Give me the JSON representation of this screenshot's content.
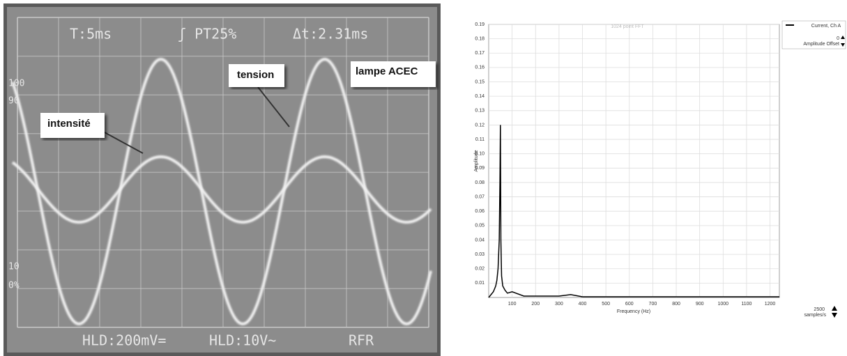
{
  "oscilloscope": {
    "readouts": [
      "T:5ms",
      "ʃ PT25%",
      "Δt:2.31ms",
      "HLD:200mV=",
      "HLD:10V~",
      "RFR"
    ],
    "graticule_labels": [
      "100",
      "90",
      "10",
      "0%"
    ],
    "annotations": [
      "tension",
      "lampe ACEC",
      "intensité"
    ]
  },
  "chart_data": {
    "type": "line",
    "title": "1024 point FFT",
    "x_label": "Frequency (Hz)",
    "y_label": "Amplitude",
    "x": [
      0,
      10,
      20,
      30,
      35,
      40,
      45,
      48,
      50,
      52,
      55,
      60,
      70,
      80,
      100,
      150,
      200,
      300,
      350,
      400,
      600,
      800,
      1000,
      1240
    ],
    "series": [
      {
        "name": "Current, Ch A",
        "color": "#000000",
        "values": [
          0,
          0.002,
          0.004,
          0.008,
          0.012,
          0.02,
          0.04,
          0.08,
          0.12,
          0.04,
          0.015,
          0.008,
          0.005,
          0.003,
          0.004,
          0.001,
          0.001,
          0.001,
          0.002,
          0.0005,
          0.0005,
          0.0005,
          0.0005,
          0.0005
        ]
      }
    ],
    "xlim": [
      0,
      1240
    ],
    "ylim": [
      0,
      0.19
    ],
    "xticks": [
      100,
      200,
      300,
      400,
      500,
      600,
      700,
      800,
      900,
      1000,
      1100,
      1200
    ],
    "yticks": [
      0.01,
      0.02,
      0.03,
      0.04,
      0.05,
      0.06,
      0.07,
      0.08,
      0.09,
      {
        "value": 0.1,
        "label": "0.10"
      },
      0.11,
      0.12,
      0.13,
      0.14,
      0.15,
      0.16,
      0.17,
      0.18,
      0.19
    ],
    "grid": true,
    "amplitude_offset_label": "Amplitude Offset",
    "amplitude_offset": 0,
    "sample_rate": 2500,
    "sample_rate_unit": "samples/s"
  }
}
